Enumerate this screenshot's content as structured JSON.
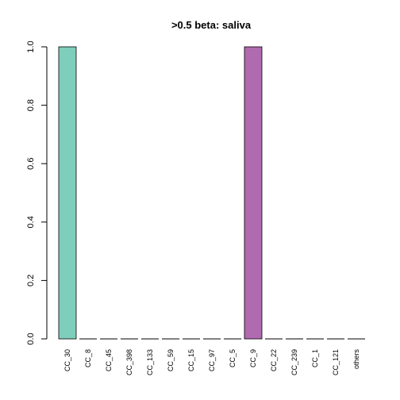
{
  "chart_data": {
    "type": "bar",
    "title": ">0.5 beta:  saliva",
    "xlabel": "",
    "ylabel": "",
    "categories": [
      "CC_30",
      "CC_8",
      "CC_45",
      "CC_398",
      "CC_133",
      "CC_59",
      "CC_15",
      "CC_97",
      "CC_5",
      "CC_9",
      "CC_22",
      "CC_239",
      "CC_1",
      "CC_121",
      "others"
    ],
    "values": [
      1.0,
      0,
      0,
      0,
      0,
      0,
      0,
      0,
      0,
      1.0,
      0,
      0,
      0,
      0,
      0
    ],
    "colors": [
      "#7fcdbb",
      "#7fcdbb",
      "#7fcdbb",
      "#7fcdbb",
      "#7fcdbb",
      "#7fcdbb",
      "#7fcdbb",
      "#7fcdbb",
      "#7fcdbb",
      "#b06aaf",
      "#7fcdbb",
      "#7fcdbb",
      "#7fcdbb",
      "#7fcdbb",
      "#7fcdbb"
    ],
    "ylim": [
      0,
      1.0
    ],
    "yticks": [
      "0.0",
      "0.2",
      "0.4",
      "0.6",
      "0.8",
      "1.0"
    ],
    "grid": false
  }
}
